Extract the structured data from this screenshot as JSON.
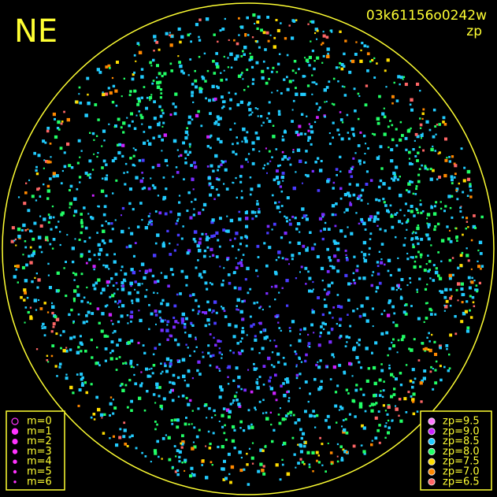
{
  "header": {
    "direction": "NE",
    "frame_id": "03k61156o0242w",
    "mode": "zp"
  },
  "magnitude_legend": {
    "items": [
      "m=0",
      "m=1",
      "m=2",
      "m=3",
      "m=4",
      "m=5",
      "m=6"
    ]
  },
  "zp_legend": {
    "items": [
      {
        "label": "zp=9.5",
        "color": "#ff77ff"
      },
      {
        "label": "zp=9.0",
        "color": "#cc22ff"
      },
      {
        "label": "zp=8.5",
        "color": "#22ccff"
      },
      {
        "label": "zp=8.0",
        "color": "#22ff66"
      },
      {
        "label": "zp=7.5",
        "color": "#ffdd00"
      },
      {
        "label": "zp=7.0",
        "color": "#ff8800"
      },
      {
        "label": "zp=6.5",
        "color": "#ff6666"
      }
    ]
  }
}
